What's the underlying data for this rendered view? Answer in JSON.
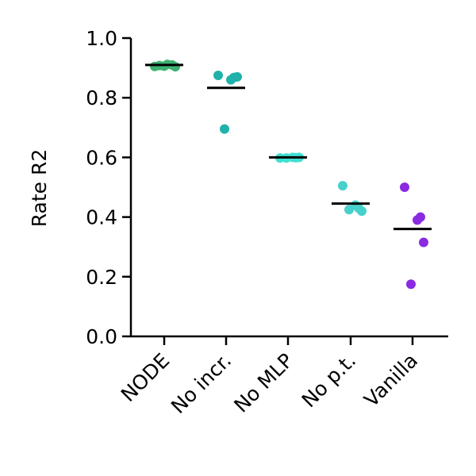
{
  "chart_data": {
    "type": "scatter",
    "title": "",
    "xlabel": "",
    "ylabel": "Rate R2",
    "ylim": [
      0.0,
      1.0
    ],
    "yticks": [
      "0.0",
      "0.2",
      "0.4",
      "0.6",
      "0.8",
      "1.0"
    ],
    "grid": false,
    "legend": "none",
    "categories": [
      "NODE",
      "No incr.",
      "No MLP",
      "No p.t.",
      "Vanilla"
    ],
    "series": [
      {
        "category": "NODE",
        "color": "#3cb371",
        "points": [
          0.905,
          0.908,
          0.906,
          0.912,
          0.91,
          0.904
        ],
        "mean": 0.91
      },
      {
        "category": "No incr.",
        "color": "#20b2aa",
        "points": [
          0.875,
          0.86,
          0.868,
          0.87,
          0.695
        ],
        "mean": 0.833
      },
      {
        "category": "No MLP",
        "color": "#40e0d0",
        "points": [
          0.598,
          0.6,
          0.599,
          0.6,
          0.598
        ],
        "mean": 0.6
      },
      {
        "category": "No p.t.",
        "color": "#48d1cc",
        "points": [
          0.505,
          0.44,
          0.43,
          0.42,
          0.425
        ],
        "mean": 0.445
      },
      {
        "category": "Vanilla",
        "color": "#8a2be2",
        "points": [
          0.5,
          0.39,
          0.4,
          0.315,
          0.175
        ],
        "mean": 0.36
      }
    ]
  }
}
